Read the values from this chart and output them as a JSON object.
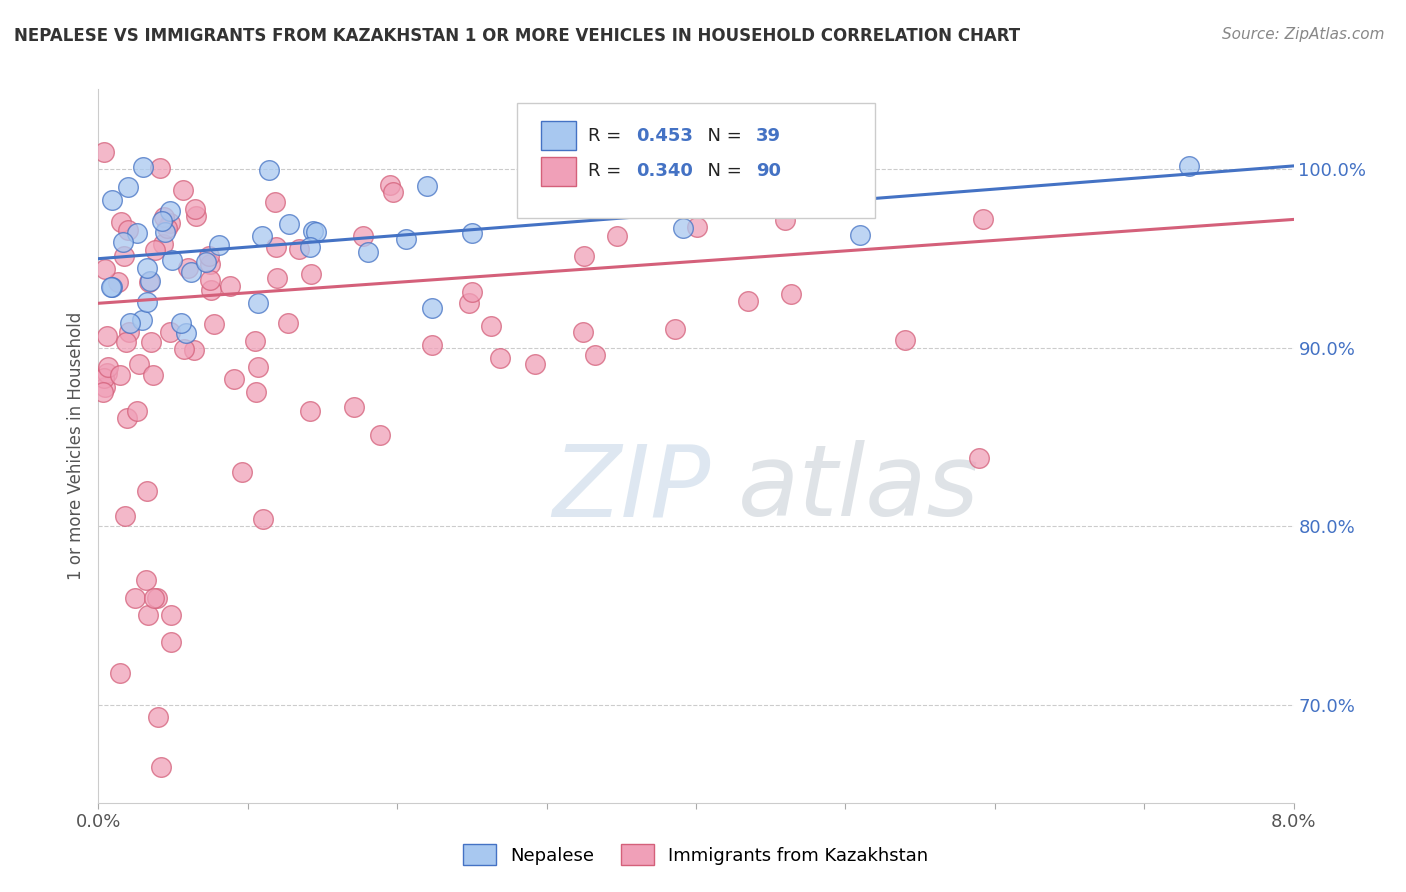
{
  "title": "NEPALESE VS IMMIGRANTS FROM KAZAKHSTAN 1 OR MORE VEHICLES IN HOUSEHOLD CORRELATION CHART",
  "source": "Source: ZipAtlas.com",
  "ylabel": "1 or more Vehicles in Household",
  "ytick_labels": [
    "70.0%",
    "80.0%",
    "90.0%",
    "100.0%"
  ],
  "ytick_values": [
    0.7,
    0.8,
    0.9,
    1.0
  ],
  "xmin": 0.0,
  "xmax": 0.08,
  "ymin": 0.645,
  "ymax": 1.045,
  "legend_nepalese": "Nepalese",
  "legend_kazakhstan": "Immigrants from Kazakhstan",
  "r_nepalese": 0.453,
  "n_nepalese": 39,
  "r_kazakhstan": 0.34,
  "n_kazakhstan": 90,
  "color_nepalese": "#A8C8F0",
  "color_kazakhstan": "#F0A0B8",
  "line_color_nepalese": "#4472C4",
  "line_color_kazakhstan": "#D4607A",
  "rv_color": "#4472C4",
  "background_color": "#FFFFFF",
  "nep_trend_y0": 0.95,
  "nep_trend_y1": 1.002,
  "kaz_trend_y0": 0.925,
  "kaz_trend_y1": 0.972,
  "watermark_zip_color": "#C8D8E8",
  "watermark_atlas_color": "#C0C8D0"
}
